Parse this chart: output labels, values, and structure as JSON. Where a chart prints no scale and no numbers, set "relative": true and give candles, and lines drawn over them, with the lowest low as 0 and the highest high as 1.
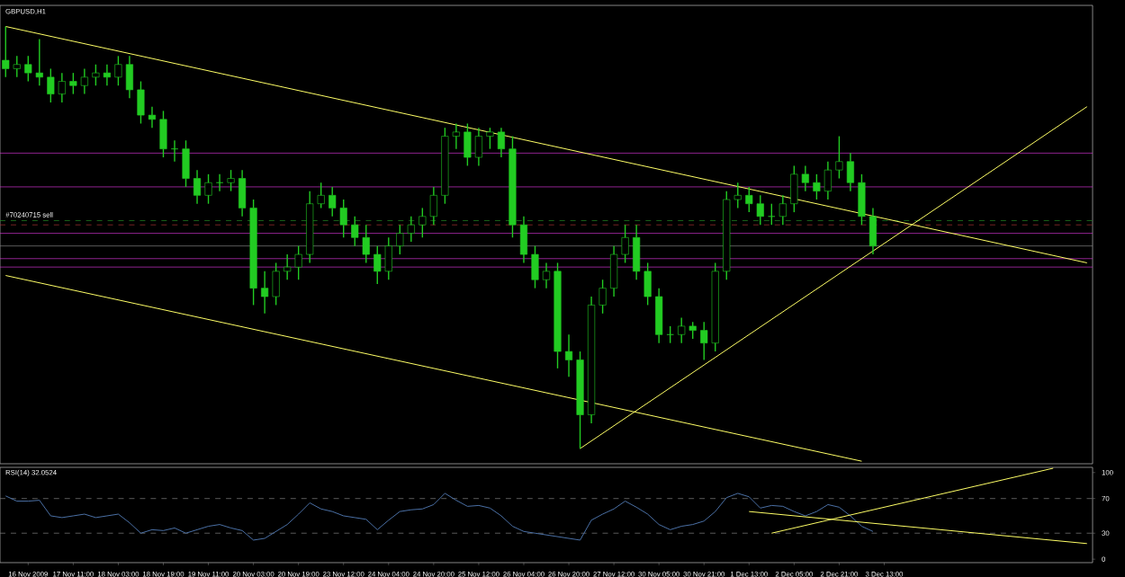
{
  "chart_data": [
    {
      "type": "candlestick",
      "relative": true,
      "title": "GBPUSD,H1",
      "tick_labels": false,
      "color": "#22cc22",
      "categories": [
        null,
        null,
        null,
        null,
        null,
        null,
        null,
        null,
        null,
        null,
        null,
        null,
        null,
        null,
        null,
        null,
        null,
        null,
        null,
        null,
        null,
        null,
        null,
        null,
        null,
        null,
        null,
        null,
        null,
        null,
        null,
        null,
        null,
        null,
        null,
        null,
        null,
        null,
        null,
        null,
        null,
        null,
        null,
        null,
        null,
        null,
        null,
        null,
        null,
        null,
        null,
        null,
        null,
        null,
        null,
        null,
        null,
        null,
        null,
        null,
        null,
        null,
        null,
        null,
        null,
        null,
        null,
        null,
        null,
        null,
        null,
        null,
        null,
        null,
        null,
        null,
        null,
        null,
        null,
        null,
        null,
        null,
        null,
        null,
        null,
        null,
        null,
        null,
        null,
        null,
        null,
        null,
        null,
        null,
        null,
        null,
        null
      ],
      "ohlc": [
        [
          0.92,
          1.0,
          0.88,
          0.9
        ],
        [
          0.9,
          0.93,
          0.88,
          0.91
        ],
        [
          0.91,
          0.93,
          0.87,
          0.89
        ],
        [
          0.89,
          0.97,
          0.86,
          0.88
        ],
        [
          0.88,
          0.9,
          0.82,
          0.84
        ],
        [
          0.84,
          0.89,
          0.82,
          0.87
        ],
        [
          0.87,
          0.89,
          0.84,
          0.86
        ],
        [
          0.86,
          0.9,
          0.84,
          0.88
        ],
        [
          0.88,
          0.91,
          0.86,
          0.89
        ],
        [
          0.89,
          0.91,
          0.86,
          0.88
        ],
        [
          0.88,
          0.93,
          0.86,
          0.91
        ],
        [
          0.91,
          0.93,
          0.83,
          0.85
        ],
        [
          0.85,
          0.87,
          0.77,
          0.79
        ],
        [
          0.79,
          0.81,
          0.76,
          0.78
        ],
        [
          0.78,
          0.8,
          0.69,
          0.71
        ],
        [
          0.71,
          0.73,
          0.68,
          0.71
        ],
        [
          0.71,
          0.73,
          0.62,
          0.64
        ],
        [
          0.64,
          0.66,
          0.58,
          0.6
        ],
        [
          0.6,
          0.65,
          0.58,
          0.63
        ],
        [
          0.63,
          0.65,
          0.61,
          0.63
        ],
        [
          0.63,
          0.66,
          0.61,
          0.64
        ],
        [
          0.64,
          0.66,
          0.55,
          0.57
        ],
        [
          0.57,
          0.59,
          0.34,
          0.38
        ],
        [
          0.38,
          0.42,
          0.32,
          0.36
        ],
        [
          0.36,
          0.44,
          0.34,
          0.42
        ],
        [
          0.42,
          0.46,
          0.4,
          0.43
        ],
        [
          0.43,
          0.48,
          0.4,
          0.46
        ],
        [
          0.46,
          0.61,
          0.44,
          0.58
        ],
        [
          0.58,
          0.63,
          0.57,
          0.6
        ],
        [
          0.6,
          0.62,
          0.55,
          0.57
        ],
        [
          0.57,
          0.59,
          0.5,
          0.53
        ],
        [
          0.53,
          0.55,
          0.48,
          0.5
        ],
        [
          0.5,
          0.53,
          0.44,
          0.46
        ],
        [
          0.46,
          0.48,
          0.39,
          0.42
        ],
        [
          0.42,
          0.5,
          0.4,
          0.48
        ],
        [
          0.48,
          0.53,
          0.46,
          0.51
        ],
        [
          0.51,
          0.55,
          0.49,
          0.53
        ],
        [
          0.53,
          0.57,
          0.5,
          0.55
        ],
        [
          0.55,
          0.62,
          0.53,
          0.6
        ],
        [
          0.6,
          0.76,
          0.58,
          0.74
        ],
        [
          0.74,
          0.77,
          0.71,
          0.75
        ],
        [
          0.75,
          0.77,
          0.67,
          0.69
        ],
        [
          0.69,
          0.76,
          0.67,
          0.74
        ],
        [
          0.74,
          0.76,
          0.71,
          0.75
        ],
        [
          0.75,
          0.76,
          0.69,
          0.71
        ],
        [
          0.71,
          0.74,
          0.5,
          0.53
        ],
        [
          0.53,
          0.55,
          0.44,
          0.46
        ],
        [
          0.46,
          0.48,
          0.38,
          0.4
        ],
        [
          0.4,
          0.44,
          0.38,
          0.42
        ],
        [
          0.42,
          0.44,
          0.19,
          0.23
        ],
        [
          0.23,
          0.27,
          0.17,
          0.21
        ],
        [
          0.21,
          0.23,
          0.0,
          0.08
        ],
        [
          0.08,
          0.36,
          0.06,
          0.34
        ],
        [
          0.34,
          0.4,
          0.32,
          0.38
        ],
        [
          0.38,
          0.48,
          0.36,
          0.46
        ],
        [
          0.46,
          0.53,
          0.44,
          0.5
        ],
        [
          0.5,
          0.53,
          0.4,
          0.42
        ],
        [
          0.42,
          0.44,
          0.34,
          0.36
        ],
        [
          0.36,
          0.38,
          0.25,
          0.27
        ],
        [
          0.27,
          0.29,
          0.25,
          0.27
        ],
        [
          0.27,
          0.31,
          0.25,
          0.29
        ],
        [
          0.29,
          0.3,
          0.26,
          0.28
        ],
        [
          0.28,
          0.3,
          0.21,
          0.25
        ],
        [
          0.25,
          0.44,
          0.23,
          0.42
        ],
        [
          0.42,
          0.61,
          0.4,
          0.59
        ],
        [
          0.59,
          0.63,
          0.57,
          0.6
        ],
        [
          0.6,
          0.62,
          0.56,
          0.58
        ],
        [
          0.58,
          0.6,
          0.53,
          0.55
        ],
        [
          0.55,
          0.58,
          0.53,
          0.55
        ],
        [
          0.55,
          0.6,
          0.53,
          0.58
        ],
        [
          0.58,
          0.67,
          0.56,
          0.65
        ],
        [
          0.65,
          0.67,
          0.61,
          0.63
        ],
        [
          0.63,
          0.65,
          0.59,
          0.61
        ],
        [
          0.61,
          0.68,
          0.59,
          0.66
        ],
        [
          0.66,
          0.74,
          0.64,
          0.68
        ],
        [
          0.68,
          0.7,
          0.61,
          0.63
        ],
        [
          0.63,
          0.65,
          0.53,
          0.55
        ],
        [
          0.55,
          0.57,
          0.46,
          0.48
        ],
        null,
        null,
        null,
        null,
        null,
        null,
        null,
        null,
        null,
        null,
        null,
        null,
        null,
        null,
        null,
        null,
        null,
        null,
        null
      ],
      "series": [
        {
          "type": "line",
          "color": "#ffff66",
          "values": [
            1.0,
            null,
            null,
            null,
            null,
            null,
            null,
            null,
            null,
            null,
            null,
            null,
            null,
            null,
            null,
            null,
            null,
            null,
            null,
            null,
            null,
            null,
            null,
            null,
            null,
            null,
            null,
            null,
            null,
            null,
            null,
            null,
            null,
            null,
            null,
            null,
            null,
            null,
            null,
            null,
            null,
            null,
            null,
            null,
            null,
            null,
            null,
            null,
            null,
            null,
            null,
            null,
            null,
            null,
            null,
            null,
            null,
            null,
            null,
            null,
            null,
            null,
            null,
            null,
            null,
            null,
            null,
            null,
            null,
            null,
            null,
            null,
            null,
            null,
            null,
            null,
            null,
            null,
            null,
            null,
            null,
            null,
            null,
            null,
            null,
            null,
            null,
            null,
            null,
            null,
            null,
            null,
            null,
            null,
            null,
            null,
            0.44
          ]
        },
        {
          "type": "line",
          "color": "#ffff66",
          "values": [
            0.41,
            null,
            null,
            null,
            null,
            null,
            null,
            null,
            null,
            null,
            null,
            null,
            null,
            null,
            null,
            null,
            null,
            null,
            null,
            null,
            null,
            null,
            null,
            null,
            null,
            null,
            null,
            null,
            null,
            null,
            null,
            null,
            null,
            null,
            null,
            null,
            null,
            null,
            null,
            null,
            null,
            null,
            null,
            null,
            null,
            null,
            null,
            null,
            null,
            null,
            null,
            null,
            null,
            null,
            null,
            null,
            null,
            null,
            null,
            null,
            null,
            null,
            null,
            null,
            null,
            null,
            null,
            null,
            null,
            null,
            null,
            null,
            null,
            null,
            null,
            null,
            -0.03,
            null,
            null,
            null,
            null,
            null,
            null,
            null,
            null,
            null,
            null,
            null,
            null,
            null,
            null,
            null,
            null,
            null,
            null,
            null,
            null
          ]
        },
        {
          "type": "line",
          "color": "#ffff66",
          "values": [
            null,
            null,
            null,
            null,
            null,
            null,
            null,
            null,
            null,
            null,
            null,
            null,
            null,
            null,
            null,
            null,
            null,
            null,
            null,
            null,
            null,
            null,
            null,
            null,
            null,
            null,
            null,
            null,
            null,
            null,
            null,
            null,
            null,
            null,
            null,
            null,
            null,
            null,
            null,
            null,
            null,
            null,
            null,
            null,
            null,
            null,
            null,
            null,
            null,
            null,
            null,
            0.0,
            null,
            null,
            null,
            null,
            null,
            null,
            null,
            null,
            null,
            null,
            null,
            null,
            null,
            null,
            null,
            null,
            null,
            null,
            null,
            null,
            null,
            null,
            null,
            null,
            null,
            null,
            null,
            null,
            null,
            null,
            null,
            null,
            null,
            null,
            null,
            null,
            null,
            null,
            null,
            null,
            null,
            null,
            null,
            null,
            0.81
          ]
        }
      ],
      "ref_lines": [
        {
          "axis": "y",
          "value": 0.7,
          "color": "#cc33cc"
        },
        {
          "axis": "y",
          "value": 0.62,
          "color": "#cc33cc"
        },
        {
          "axis": "y",
          "value": 0.54,
          "color": "#228822",
          "line_style": "dashed"
        },
        {
          "axis": "y",
          "value": 0.53,
          "color": "#aa3333",
          "line_style": "dashed"
        },
        {
          "axis": "y",
          "value": 0.51,
          "color": "#cc33cc"
        },
        {
          "axis": "y",
          "value": 0.48,
          "color": "#808080"
        },
        {
          "axis": "y",
          "value": 0.45,
          "color": "#cc33cc"
        },
        {
          "axis": "y",
          "value": 0.43,
          "color": "#cc33cc"
        }
      ],
      "annotations": [
        "#70240715 sell"
      ]
    },
    {
      "type": "line",
      "title": "RSI(14) 32.0524",
      "ylim": [
        -4,
        106
      ],
      "yticks": [
        0,
        30,
        70,
        100
      ],
      "categories": [
        null,
        null,
        "16 Nov 2009",
        null,
        null,
        null,
        "17 Nov 11:00",
        null,
        null,
        null,
        "18 Nov 03:00",
        null,
        null,
        null,
        "18 Nov 19:00",
        null,
        null,
        null,
        "19 Nov 11:00",
        null,
        null,
        null,
        "20 Nov 03:00",
        null,
        null,
        null,
        "20 Nov 19:00",
        null,
        null,
        null,
        "23 Nov 12:00",
        null,
        null,
        null,
        "24 Nov 04:00",
        null,
        null,
        null,
        "24 Nov 20:00",
        null,
        null,
        null,
        "25 Nov 12:00",
        null,
        null,
        null,
        "26 Nov 04:00",
        null,
        null,
        null,
        "26 Nov 20:00",
        null,
        null,
        null,
        "27 Nov 12:00",
        null,
        null,
        null,
        "30 Nov 05:00",
        null,
        null,
        null,
        "30 Nov 21:00",
        null,
        null,
        null,
        "1 Dec 13:00",
        null,
        null,
        null,
        "2 Dec 05:00",
        null,
        null,
        null,
        "2 Dec 21:00",
        null,
        null,
        null,
        "3 Dec 13:00",
        null,
        null,
        null,
        null,
        null,
        null,
        null,
        null,
        null,
        null,
        null,
        null,
        null,
        null,
        null,
        null,
        null,
        null
      ],
      "series": [
        {
          "color": "#4a6fa5",
          "values": [
            73,
            67,
            67,
            68,
            50,
            48,
            50,
            52,
            48,
            50,
            52,
            42,
            30,
            34,
            33,
            36,
            30,
            34,
            38,
            40,
            36,
            33,
            22,
            24,
            32,
            40,
            52,
            65,
            58,
            55,
            50,
            48,
            46,
            34,
            45,
            55,
            57,
            58,
            63,
            76,
            68,
            61,
            62,
            59,
            50,
            38,
            32,
            30,
            28,
            26,
            24,
            22,
            45,
            52,
            58,
            67,
            60,
            52,
            40,
            34,
            38,
            40,
            44,
            55,
            71,
            76,
            72,
            59,
            62,
            61,
            55,
            50,
            55,
            63,
            60,
            50,
            38,
            32,
            null,
            null,
            null,
            null,
            null,
            null,
            null,
            null,
            null,
            null,
            null,
            null,
            null,
            null,
            null,
            null,
            null,
            null,
            null
          ]
        },
        {
          "color": "#ffff66",
          "values": [
            null,
            null,
            null,
            null,
            null,
            null,
            null,
            null,
            null,
            null,
            null,
            null,
            null,
            null,
            null,
            null,
            null,
            null,
            null,
            null,
            null,
            null,
            null,
            null,
            null,
            null,
            null,
            null,
            null,
            null,
            null,
            null,
            null,
            null,
            null,
            null,
            null,
            null,
            null,
            null,
            null,
            null,
            null,
            null,
            null,
            null,
            null,
            null,
            null,
            null,
            null,
            null,
            null,
            null,
            null,
            null,
            null,
            null,
            null,
            null,
            null,
            null,
            null,
            null,
            null,
            null,
            55,
            null,
            null,
            null,
            null,
            null,
            null,
            null,
            null,
            null,
            null,
            null,
            null,
            null,
            null,
            null,
            null,
            null,
            null,
            null,
            null,
            null,
            null,
            null,
            null,
            null,
            null,
            null,
            null,
            null,
            18
          ]
        },
        {
          "color": "#ffff66",
          "values": [
            null,
            null,
            null,
            null,
            null,
            null,
            null,
            null,
            null,
            null,
            null,
            null,
            null,
            null,
            null,
            null,
            null,
            null,
            null,
            null,
            null,
            null,
            null,
            null,
            null,
            null,
            null,
            null,
            null,
            null,
            null,
            null,
            null,
            null,
            null,
            null,
            null,
            null,
            null,
            null,
            null,
            null,
            null,
            null,
            null,
            null,
            null,
            null,
            null,
            null,
            null,
            null,
            null,
            null,
            null,
            null,
            null,
            null,
            null,
            null,
            null,
            null,
            null,
            null,
            null,
            null,
            null,
            null,
            30,
            null,
            null,
            null,
            null,
            null,
            null,
            null,
            null,
            null,
            null,
            null,
            null,
            null,
            null,
            null,
            null,
            null,
            null,
            null,
            null,
            null,
            null,
            null,
            null,
            105,
            null,
            null,
            null
          ]
        }
      ],
      "ref_lines": [
        {
          "axis": "y",
          "value": 70,
          "color": "#808080",
          "line_style": "dashed"
        },
        {
          "axis": "y",
          "value": 30,
          "color": "#808080",
          "line_style": "dashed"
        }
      ]
    }
  ]
}
